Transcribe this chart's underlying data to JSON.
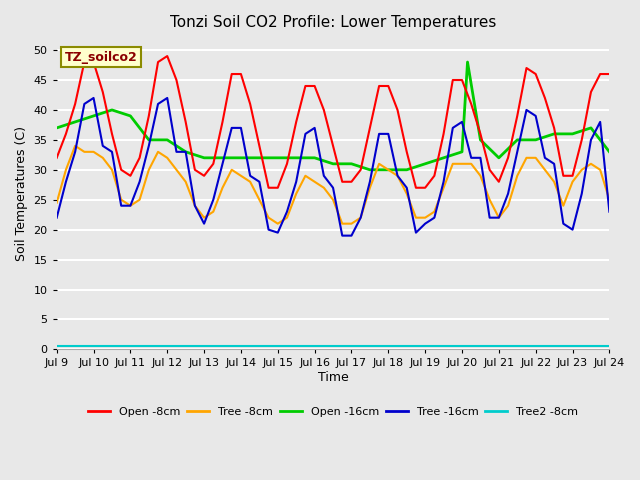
{
  "title": "Tonzi Soil CO2 Profile: Lower Temperatures",
  "ylabel": "Soil Temperatures (C)",
  "xlabel": "Time",
  "watermark": "TZ_soilco2",
  "xlim": [
    9,
    24
  ],
  "ylim": [
    0,
    52
  ],
  "yticks": [
    0,
    5,
    10,
    15,
    20,
    25,
    30,
    35,
    40,
    45,
    50
  ],
  "xtick_labels": [
    "Jul 9",
    "Jul 10",
    "Jul 11",
    "Jul 12",
    "Jul 13",
    "Jul 14",
    "Jul 15",
    "Jul 16",
    "Jul 17",
    "Jul 18",
    "Jul 19",
    "Jul 20",
    "Jul 21",
    "Jul 22",
    "Jul 23",
    "Jul 24"
  ],
  "xtick_positions": [
    9,
    10,
    11,
    12,
    13,
    14,
    15,
    16,
    17,
    18,
    19,
    20,
    21,
    22,
    23,
    24
  ],
  "bg_color": "#e8e8e8",
  "grid_color": "#ffffff",
  "series": {
    "open_8cm": {
      "color": "#ff0000",
      "label": "Open -8cm",
      "y": [
        32,
        36,
        41,
        48,
        48,
        43,
        36,
        30,
        29,
        32,
        39,
        48,
        49,
        45,
        38,
        30,
        29,
        31,
        38,
        46,
        46,
        41,
        34,
        27,
        27,
        31,
        38,
        44,
        44,
        40,
        34,
        28,
        28,
        30,
        37,
        44,
        44,
        40,
        33,
        27,
        27,
        29,
        36,
        45,
        45,
        41,
        36,
        30,
        28,
        32,
        39,
        47,
        46,
        42,
        37,
        29,
        29,
        35,
        43,
        46,
        46
      ]
    },
    "tree_8cm": {
      "color": "#ffa500",
      "label": "Tree -8cm",
      "y": [
        24.5,
        30,
        34,
        33,
        33,
        32,
        30,
        25,
        24,
        25,
        30,
        33,
        32,
        30,
        28,
        24,
        22,
        23,
        27,
        30,
        29,
        28,
        25,
        22,
        21,
        22,
        26,
        29,
        28,
        27,
        25,
        21,
        21,
        22,
        27,
        31,
        30,
        29,
        26,
        22,
        22,
        23,
        27,
        31,
        31,
        31,
        29,
        25,
        22,
        24,
        29,
        32,
        32,
        30,
        28,
        24,
        28,
        30,
        31,
        30,
        25
      ]
    },
    "open_16cm": {
      "color": "#00cc00",
      "label": "Open -16cm",
      "x": [
        9.0,
        9.5,
        10.0,
        10.5,
        11.0,
        11.5,
        12.0,
        12.5,
        13.0,
        13.5,
        14.0,
        14.5,
        15.0,
        15.5,
        16.0,
        16.5,
        17.0,
        17.5,
        18.0,
        18.5,
        19.0,
        19.5,
        20.0,
        20.15,
        20.5,
        21.0,
        21.5,
        22.0,
        22.5,
        23.0,
        23.5,
        24.0
      ],
      "y": [
        37,
        38,
        39,
        40,
        39,
        35,
        35,
        33,
        32,
        32,
        32,
        32,
        32,
        32,
        32,
        31,
        31,
        30,
        30,
        30,
        31,
        32,
        33,
        48,
        35,
        32,
        35,
        35,
        36,
        36,
        37,
        33
      ]
    },
    "tree_16cm": {
      "color": "#0000cc",
      "label": "Tree -16cm",
      "y": [
        22,
        28,
        33,
        41,
        42,
        34,
        33,
        24,
        24,
        28,
        34,
        41,
        42,
        33,
        33,
        24,
        21,
        25,
        31,
        37,
        37,
        29,
        28,
        20,
        19.5,
        23,
        28,
        36,
        37,
        29,
        27,
        19,
        19,
        22,
        28,
        36,
        36,
        29,
        27,
        19.5,
        21,
        22,
        28,
        37,
        38,
        32,
        32,
        22,
        22,
        26,
        33,
        40,
        39,
        32,
        31,
        21,
        20,
        26,
        35,
        38,
        23
      ]
    },
    "tree2_8cm": {
      "color": "#00cccc",
      "label": "Tree2 -8cm",
      "x": [
        9.0,
        24.0
      ],
      "y": [
        0.5,
        0.5
      ]
    }
  },
  "n_points": 61,
  "x_start": 9.0,
  "x_step": 0.25
}
